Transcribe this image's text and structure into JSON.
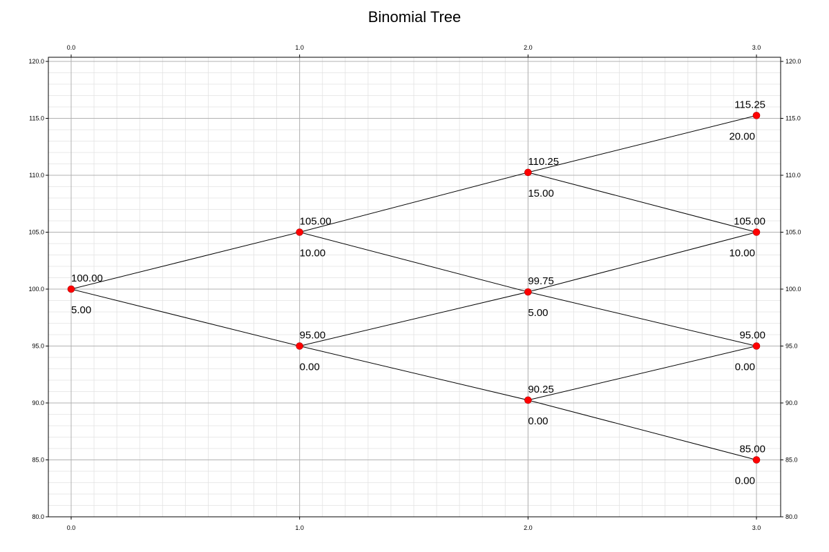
{
  "title": "Binomial Tree",
  "chart_data": {
    "type": "scatter",
    "title": "Binomial Tree",
    "xlabel": "",
    "ylabel": "",
    "xlim": [
      0.0,
      3.0
    ],
    "ylim": [
      80.0,
      120.0
    ],
    "x_ticks": [
      "0.0",
      "1.0",
      "2.0",
      "3.0"
    ],
    "y_ticks": [
      "80.0",
      "85.0",
      "90.0",
      "95.0",
      "100.0",
      "105.0",
      "110.0",
      "115.0",
      "120.0"
    ],
    "x_tick_values": [
      0.0,
      1.0,
      2.0,
      3.0
    ],
    "y_tick_values": [
      80.0,
      85.0,
      90.0,
      95.0,
      100.0,
      105.0,
      110.0,
      115.0,
      120.0
    ],
    "grid": true,
    "axes_ticks_on": [
      "top",
      "bottom",
      "left",
      "right"
    ],
    "node_color": "#ff0000",
    "edge_color": "#000000",
    "nodes": [
      {
        "id": "n00",
        "x": 0,
        "y": 100.0,
        "price_label": "100.00",
        "value_label": "5.00"
      },
      {
        "id": "n10",
        "x": 1,
        "y": 105.0,
        "price_label": "105.00",
        "value_label": "10.00"
      },
      {
        "id": "n11",
        "x": 1,
        "y": 95.0,
        "price_label": "95.00",
        "value_label": "0.00"
      },
      {
        "id": "n20",
        "x": 2,
        "y": 110.25,
        "price_label": "110.25",
        "value_label": "15.00"
      },
      {
        "id": "n21",
        "x": 2,
        "y": 99.75,
        "price_label": "99.75",
        "value_label": "5.00"
      },
      {
        "id": "n22",
        "x": 2,
        "y": 90.25,
        "price_label": "90.25",
        "value_label": "0.00"
      },
      {
        "id": "n30",
        "x": 3,
        "y": 115.25,
        "price_label": "115.25",
        "value_label": "20.00"
      },
      {
        "id": "n31",
        "x": 3,
        "y": 105.0,
        "price_label": "105.00",
        "value_label": "10.00"
      },
      {
        "id": "n32",
        "x": 3,
        "y": 95.0,
        "price_label": "95.00",
        "value_label": "0.00"
      },
      {
        "id": "n33",
        "x": 3,
        "y": 85.0,
        "price_label": "85.00",
        "value_label": "0.00"
      }
    ],
    "edges": [
      [
        "n00",
        "n10"
      ],
      [
        "n00",
        "n11"
      ],
      [
        "n10",
        "n20"
      ],
      [
        "n10",
        "n21"
      ],
      [
        "n11",
        "n21"
      ],
      [
        "n11",
        "n22"
      ],
      [
        "n20",
        "n30"
      ],
      [
        "n20",
        "n31"
      ],
      [
        "n21",
        "n31"
      ],
      [
        "n21",
        "n32"
      ],
      [
        "n22",
        "n32"
      ],
      [
        "n22",
        "n33"
      ]
    ]
  }
}
